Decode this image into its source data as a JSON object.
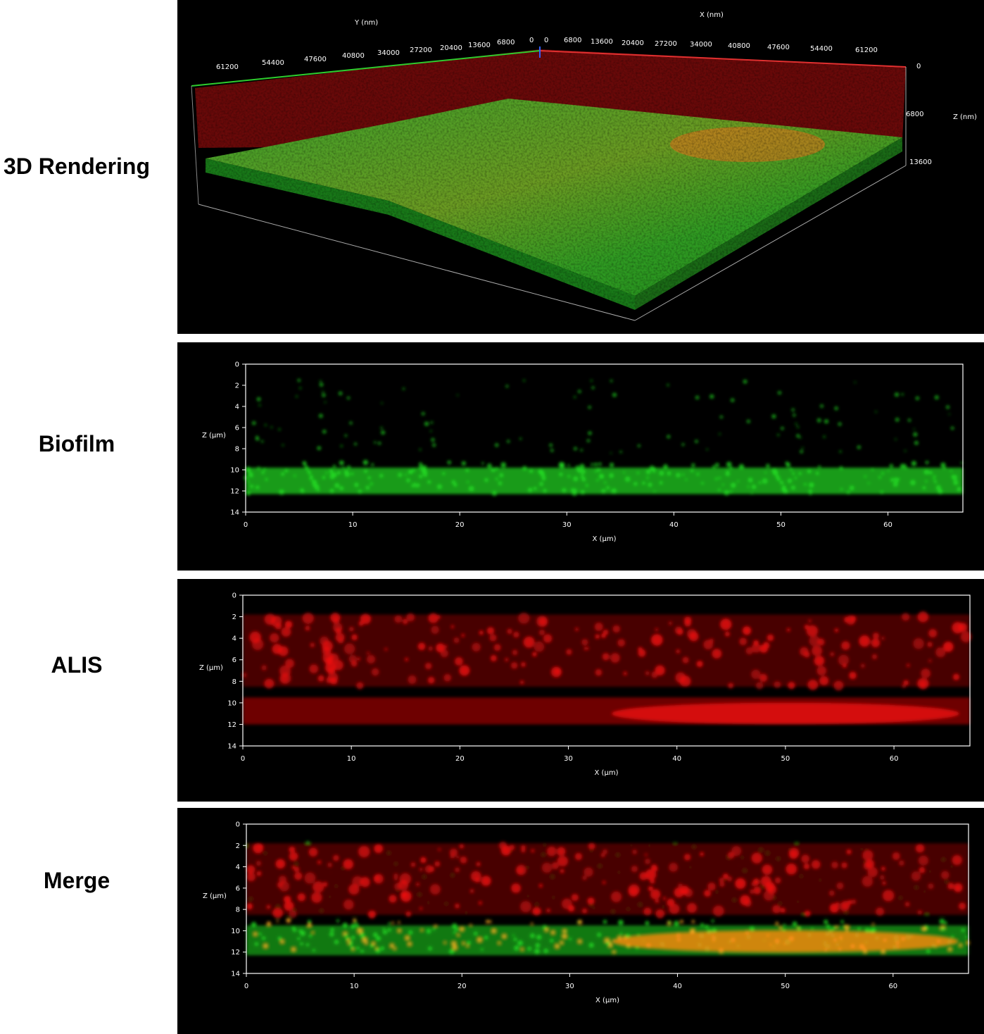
{
  "labels": {
    "rendering": "3D Rendering",
    "biofilm": "Biofilm",
    "alis": "ALIS",
    "merge": "Merge"
  },
  "rendering3d": {
    "y_axis_title": "Y (nm)",
    "x_axis_title": "X (nm)",
    "z_axis_title": "Z (nm)",
    "y_ticks": [
      "61200",
      "54400",
      "47600",
      "40800",
      "34000",
      "27200",
      "20400",
      "13600",
      "6800",
      "0"
    ],
    "x_ticks": [
      "0",
      "6800",
      "13600",
      "20400",
      "27200",
      "34000",
      "40800",
      "47600",
      "54400",
      "61200"
    ],
    "z_ticks": [
      "0",
      "6800",
      "13600"
    ],
    "colors": {
      "y_axis": "#2ecc2e",
      "x_axis": "#e03030",
      "z_axis": "#3060ff"
    }
  },
  "sections": {
    "x_label": "X (µm)",
    "z_label": "Z (µm)",
    "x_ticks": [
      "0",
      "10",
      "20",
      "30",
      "40",
      "50",
      "60"
    ],
    "z_ticks": [
      "0",
      "2",
      "4",
      "6",
      "8",
      "10",
      "12",
      "14"
    ],
    "x_range": [
      0,
      67
    ],
    "z_range": [
      0,
      14
    ]
  },
  "channels": {
    "biofilm": "#22dd22",
    "alis": "#ee1111"
  }
}
